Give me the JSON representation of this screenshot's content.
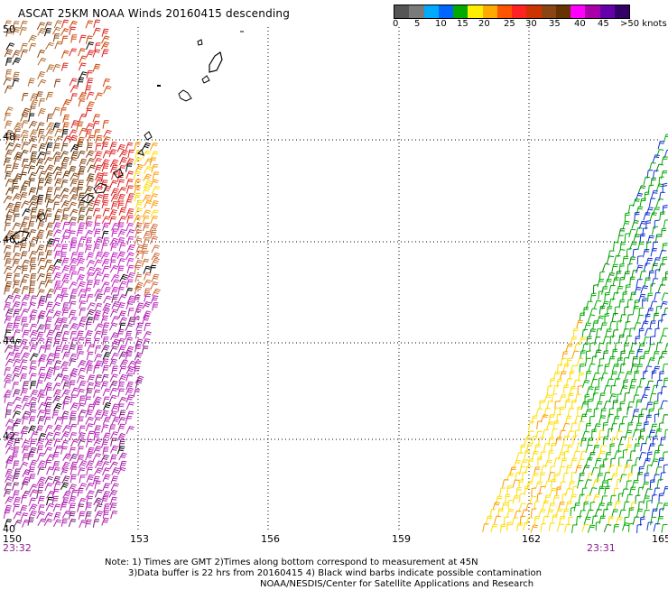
{
  "title": "ASCAT 25KM NOAA Winds 20160415 descending",
  "legend": {
    "labels": [
      "0",
      "5",
      "10",
      "15",
      "20",
      "25",
      "30",
      "35",
      "40",
      "45",
      ">50 knots"
    ],
    "colors": [
      "#555555",
      "#7a7a7a",
      "#00aaff",
      "#0066ff",
      "#00aa00",
      "#ffee00",
      "#ffaa00",
      "#ff5500",
      "#ff2222",
      "#cc3300",
      "#8b4513",
      "#663300",
      "#ff00ff",
      "#aa00aa",
      "#6600aa",
      "#330066"
    ]
  },
  "axes": {
    "lat_labels": [
      "50",
      "48",
      "46",
      "44",
      "42",
      "40"
    ],
    "lon_labels": [
      "150",
      "153",
      "156",
      "159",
      "162",
      "165"
    ]
  },
  "times": {
    "left": "23:32",
    "right": "23:31"
  },
  "notes": [
    "Note: 1) Times are GMT 2)Times along bottom correspond to measurement at 45N",
    "3)Data buffer is 22 hrs from 20160415 4) Black wind barbs indicate possible contamination",
    "NOAA/NESDIS/Center for Satellite Applications and Research"
  ]
}
